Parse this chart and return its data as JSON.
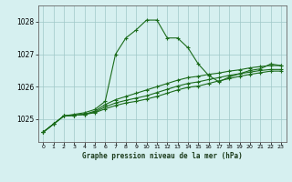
{
  "title": "Graphe pression niveau de la mer (hPa)",
  "background_color": "#d6f0f0",
  "plot_bg_color": "#d6f0f0",
  "grid_color": "#a0c8c8",
  "line_color": "#1a6b1a",
  "xlim": [
    -0.5,
    23.5
  ],
  "ylim": [
    1024.3,
    1028.5
  ],
  "yticks": [
    1025,
    1026,
    1027,
    1028
  ],
  "xticks": [
    0,
    1,
    2,
    3,
    4,
    5,
    6,
    7,
    8,
    9,
    10,
    11,
    12,
    13,
    14,
    15,
    16,
    17,
    18,
    19,
    20,
    21,
    22,
    23
  ],
  "series_main": [
    1024.6,
    1024.85,
    1025.1,
    1025.15,
    1025.2,
    1025.3,
    1025.55,
    1027.0,
    1027.5,
    1027.75,
    1028.05,
    1028.05,
    1027.5,
    1027.5,
    1027.2,
    1026.7,
    1026.35,
    1026.15,
    1026.3,
    1026.4,
    1026.5,
    1026.55,
    1026.7,
    1026.65
  ],
  "series_b": [
    1024.6,
    1024.85,
    1025.1,
    1025.12,
    1025.15,
    1025.25,
    1025.45,
    1025.6,
    1025.7,
    1025.8,
    1025.9,
    1026.0,
    1026.1,
    1026.2,
    1026.28,
    1026.32,
    1026.38,
    1026.42,
    1026.48,
    1026.52,
    1026.58,
    1026.62,
    1026.65,
    1026.65
  ],
  "series_c": [
    1024.6,
    1024.85,
    1025.1,
    1025.12,
    1025.15,
    1025.22,
    1025.38,
    1025.5,
    1025.58,
    1025.65,
    1025.72,
    1025.82,
    1025.92,
    1026.02,
    1026.1,
    1026.15,
    1026.22,
    1026.28,
    1026.35,
    1026.4,
    1026.45,
    1026.5,
    1026.53,
    1026.53
  ],
  "series_d": [
    1024.6,
    1024.85,
    1025.1,
    1025.12,
    1025.15,
    1025.2,
    1025.32,
    1025.42,
    1025.5,
    1025.55,
    1025.62,
    1025.7,
    1025.8,
    1025.9,
    1025.98,
    1026.02,
    1026.1,
    1026.18,
    1026.25,
    1026.32,
    1026.38,
    1026.43,
    1026.48,
    1026.48
  ],
  "marker": "+",
  "markersize": 3,
  "linewidth": 0.8
}
